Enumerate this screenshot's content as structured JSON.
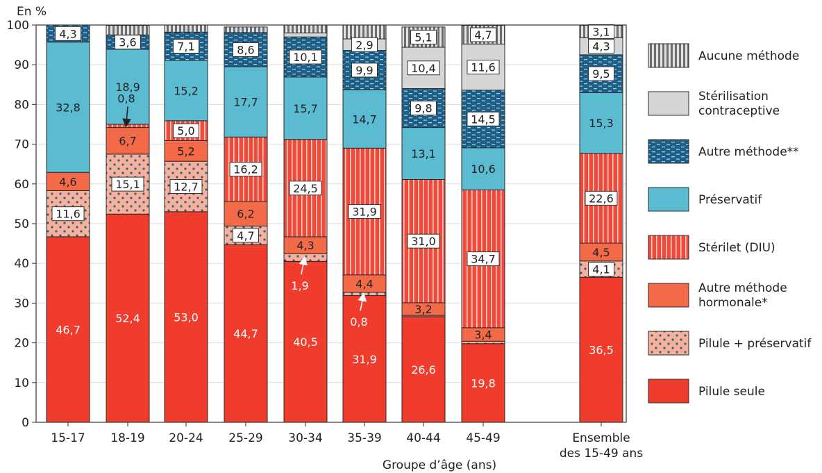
{
  "chart_data": {
    "type": "bar",
    "stacked": true,
    "ylabel": "En %",
    "xlabel": "Groupe d’âge (ans)",
    "ylim": [
      0,
      100
    ],
    "yticks": [
      0,
      10,
      20,
      30,
      40,
      50,
      60,
      70,
      80,
      90,
      100
    ],
    "categories": [
      "15-17",
      "18-19",
      "20-24",
      "25-29",
      "30-34",
      "35-39",
      "40-44",
      "45-49",
      "Ensemble des 15-49 ans"
    ],
    "legend_position": "right",
    "series": [
      {
        "name": "Pilule seule",
        "color": "#f03c2c",
        "pattern": "solid",
        "values": [
          46.7,
          52.4,
          53.0,
          44.7,
          40.5,
          31.9,
          26.6,
          19.8,
          36.5
        ]
      },
      {
        "name": "Pilule + préservatif",
        "color": "#f7b09a",
        "pattern": "dots",
        "values": [
          11.6,
          15.1,
          12.7,
          4.7,
          1.9,
          0.8,
          0.3,
          0.6,
          4.1
        ]
      },
      {
        "name": "Autre méthode hormonale*",
        "color": "#f26a48",
        "pattern": "solid",
        "values": [
          4.6,
          6.7,
          5.2,
          6.2,
          4.3,
          4.4,
          3.2,
          3.4,
          4.5
        ]
      },
      {
        "name": "Stérilet (DIU)",
        "color": "#f04a3a",
        "pattern": "vstripes",
        "values": [
          null,
          0.8,
          5.0,
          16.2,
          24.5,
          31.9,
          31.0,
          34.7,
          22.6
        ]
      },
      {
        "name": "Préservatif",
        "color": "#5bbcd1",
        "pattern": "solid",
        "values": [
          32.8,
          18.9,
          15.2,
          17.7,
          15.7,
          14.7,
          13.1,
          10.6,
          15.3
        ]
      },
      {
        "name": "Autre méthode**",
        "color": "#1f5e86",
        "pattern": "dashes",
        "values": [
          4.3,
          3.6,
          7.1,
          8.6,
          10.1,
          9.9,
          9.8,
          14.5,
          9.5
        ]
      },
      {
        "name": "Stérilisation contraceptive",
        "color": "#d6d6d8",
        "pattern": "solid",
        "values": [
          null,
          null,
          null,
          null,
          1.0,
          2.9,
          10.4,
          11.6,
          4.3
        ]
      },
      {
        "name": "Aucune méthode",
        "color": "#9a9a9c",
        "pattern": "vhatch",
        "values": [
          null,
          2.4,
          1.8,
          1.4,
          2.0,
          3.5,
          5.1,
          4.7,
          3.1
        ]
      }
    ],
    "data_labels": [
      [
        "46,7",
        "11,6",
        "4,6",
        "",
        "32,8",
        "4,3",
        "",
        ""
      ],
      [
        "52,4",
        "15,1",
        "6,7",
        "0,8",
        "18,9",
        "3,6",
        "",
        ""
      ],
      [
        "53,0",
        "12,7",
        "5,2",
        "5,0",
        "15,2",
        "7,1",
        "",
        ""
      ],
      [
        "44,7",
        "4,7",
        "6,2",
        "16,2",
        "17,7",
        "8,6",
        "",
        ""
      ],
      [
        "40,5",
        "1,9",
        "4,3",
        "24,5",
        "15,7",
        "10,1",
        "",
        ""
      ],
      [
        "31,9",
        "0,8",
        "4,4",
        "31,9",
        "14,7",
        "9,9",
        "2,9",
        ""
      ],
      [
        "26,6",
        "",
        "3,2",
        "31,0",
        "13,1",
        "9,8",
        "10,4",
        "5,1"
      ],
      [
        "19,8",
        "",
        "3,4",
        "34,7",
        "10,6",
        "14,5",
        "11,6",
        "4,7"
      ],
      [
        "36,5",
        "4,1",
        "4,5",
        "22,6",
        "15,3",
        "9,5",
        "4,3",
        "3,1"
      ]
    ],
    "legend": [
      {
        "label": "Aucune méthode"
      },
      {
        "label": "Stérilisation contraceptive"
      },
      {
        "label": "Autre méthode**"
      },
      {
        "label": "Préservatif"
      },
      {
        "label": "Stérilet (DIU)"
      },
      {
        "label": "Autre méthode hormonale*"
      },
      {
        "label": "Pilule + préservatif"
      },
      {
        "label": "Pilule seule"
      }
    ]
  }
}
